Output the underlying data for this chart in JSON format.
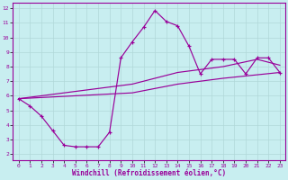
{
  "xlabel": "Windchill (Refroidissement éolien,°C)",
  "bg_color": "#c8eef0",
  "line_color": "#990099",
  "grid_color": "#b0d8d8",
  "xlim_min": -0.5,
  "xlim_max": 23.5,
  "ylim_min": 1.6,
  "ylim_max": 12.4,
  "xticks": [
    0,
    1,
    2,
    3,
    4,
    5,
    6,
    7,
    8,
    9,
    10,
    11,
    12,
    13,
    14,
    15,
    16,
    17,
    18,
    19,
    20,
    21,
    22,
    23
  ],
  "yticks": [
    2,
    3,
    4,
    5,
    6,
    7,
    8,
    9,
    10,
    11,
    12
  ],
  "curve_x": [
    0,
    1,
    2,
    3,
    4,
    5,
    6,
    7,
    8,
    9,
    10,
    11,
    12,
    13,
    14,
    15,
    16,
    17,
    18,
    19,
    20,
    21,
    22,
    23
  ],
  "curve_y": [
    5.8,
    5.3,
    4.6,
    3.6,
    2.6,
    2.5,
    2.5,
    2.5,
    3.5,
    8.6,
    9.7,
    10.7,
    11.85,
    11.1,
    10.8,
    9.4,
    7.5,
    8.5,
    8.5,
    8.5,
    7.5,
    8.6,
    8.6,
    7.6
  ],
  "ref_upper_x": [
    0,
    10,
    14,
    18,
    21,
    23
  ],
  "ref_upper_y": [
    5.8,
    6.8,
    7.6,
    8.0,
    8.5,
    8.1
  ],
  "ref_lower_x": [
    0,
    10,
    14,
    18,
    23
  ],
  "ref_lower_y": [
    5.8,
    6.2,
    6.8,
    7.2,
    7.6
  ]
}
